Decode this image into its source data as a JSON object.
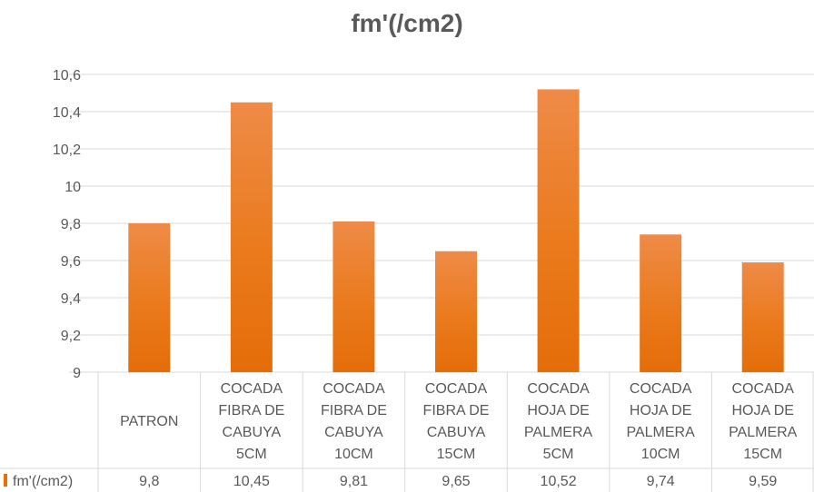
{
  "chart_data": {
    "type": "bar",
    "title": "fm'(/cm2)",
    "categories": [
      [
        "PATRON"
      ],
      [
        "COCADA",
        "FIBRA DE",
        "CABUYA",
        "5CM"
      ],
      [
        "COCADA",
        "FIBRA DE",
        "CABUYA",
        "10CM"
      ],
      [
        "COCADA",
        "FIBRA DE",
        "CABUYA",
        "15CM"
      ],
      [
        "COCADA",
        "HOJA DE",
        "PALMERA",
        "5CM"
      ],
      [
        "COCADA",
        "HOJA DE",
        "PALMERA",
        "10CM"
      ],
      [
        "COCADA",
        "HOJA DE",
        "PALMERA",
        "15CM"
      ]
    ],
    "series": [
      {
        "name": "fm'(/cm2)",
        "values": [
          9.8,
          10.45,
          9.81,
          9.65,
          10.52,
          9.74,
          9.59
        ]
      }
    ],
    "value_labels": [
      "9,8",
      "10,45",
      "9,81",
      "9,65",
      "10,52",
      "9,74",
      "9,59"
    ],
    "ylim": [
      9,
      10.6
    ],
    "y_ticks": [
      "9",
      "9,2",
      "9,4",
      "9,6",
      "9,8",
      "10",
      "10,2",
      "10,4",
      "10,6"
    ],
    "grid": true,
    "legend": "data-table",
    "colors": {
      "bar_light": "#f0a060",
      "bar_dark": "#e86f0a",
      "grid": "#d9d9d9",
      "text": "#595959"
    }
  }
}
